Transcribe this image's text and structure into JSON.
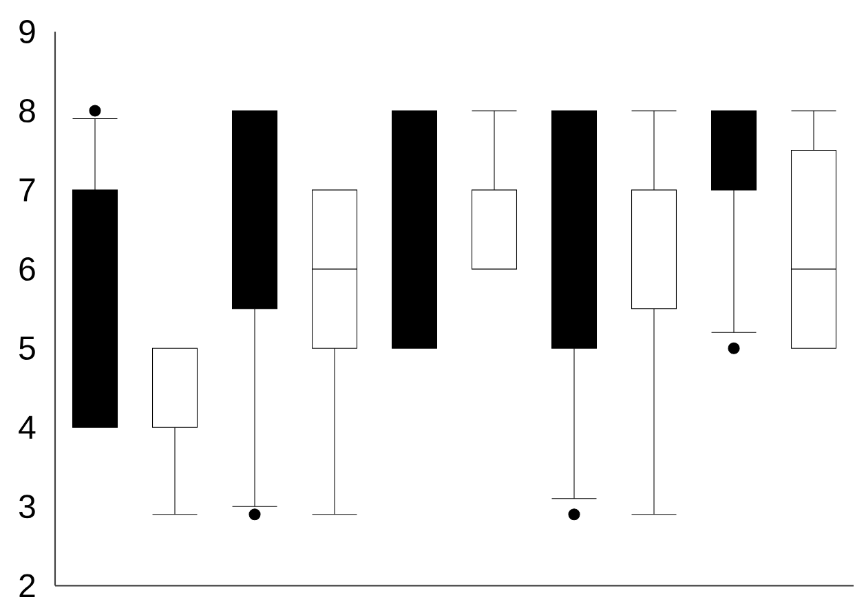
{
  "chart_data": {
    "type": "box",
    "categories": [
      null,
      null,
      null,
      null,
      null
    ],
    "ylim": [
      2,
      9
    ],
    "yticks": [
      2,
      3,
      4,
      5,
      6,
      7,
      8,
      9
    ],
    "tick_labels": "y",
    "series": [
      {
        "color": "#000000",
        "boxes": [
          {
            "low": 4,
            "q1": 4,
            "median": 4,
            "q3": 7,
            "high": 7.9,
            "outliers": [
              8
            ]
          },
          {
            "low": 3.0,
            "q1": 5.5,
            "median": 5.5,
            "q3": 8,
            "high": 8,
            "outliers": [
              2.9
            ]
          },
          {
            "low": 5,
            "q1": 5,
            "median": 5,
            "q3": 8,
            "high": 8
          },
          {
            "low": 3.1,
            "q1": 5,
            "median": 5,
            "q3": 8,
            "high": 8,
            "outliers": [
              2.9
            ]
          },
          {
            "low": 5.2,
            "q1": 7,
            "median": 7,
            "q3": 8,
            "high": 8,
            "outliers": [
              5.0
            ]
          }
        ]
      },
      {
        "color": "#ffffff",
        "boxes": [
          {
            "low": 2.9,
            "q1": 4,
            "median": 4,
            "q3": 5,
            "high": 5
          },
          {
            "low": 2.9,
            "q1": 5,
            "median": 6,
            "q3": 7,
            "high": 7
          },
          {
            "low": 6,
            "q1": 6,
            "median": 6,
            "q3": 7,
            "high": 8
          },
          {
            "low": 2.9,
            "q1": 5.5,
            "median": 5.5,
            "q3": 7,
            "high": 8
          },
          {
            "low": 5,
            "q1": 5,
            "median": 6,
            "q3": 7.5,
            "high": 8
          }
        ]
      }
    ]
  }
}
